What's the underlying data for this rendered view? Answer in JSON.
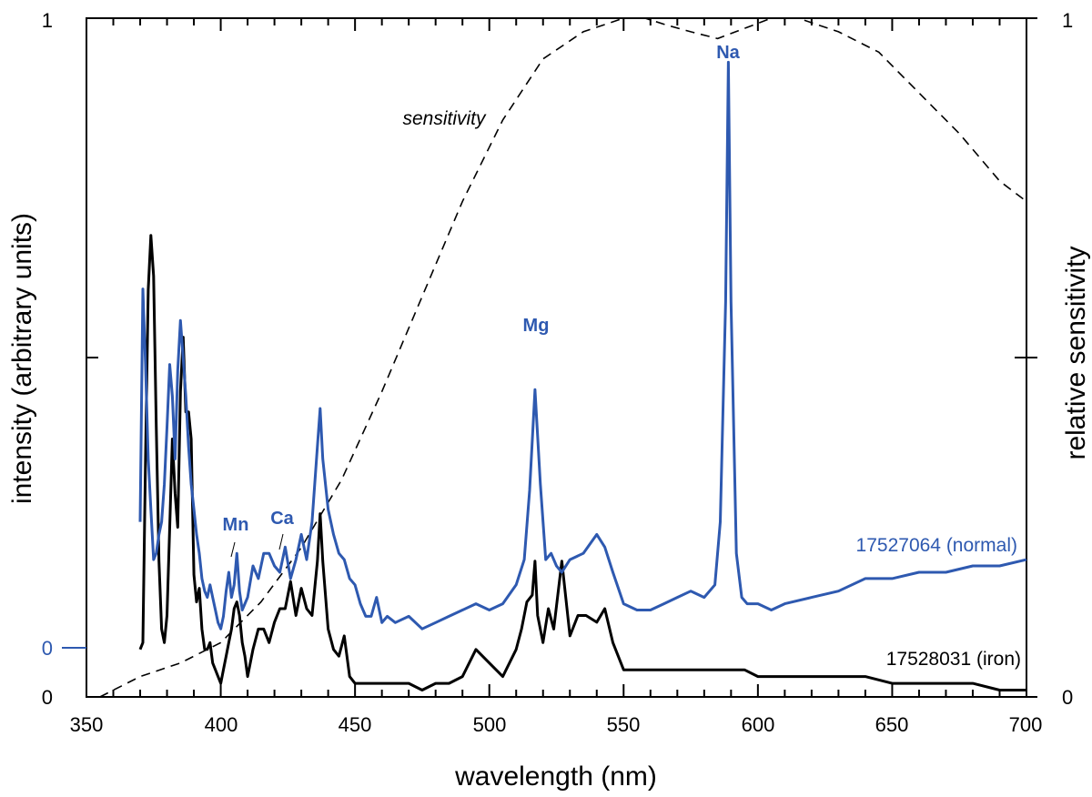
{
  "chart_data": {
    "type": "line",
    "xlabel": "wavelength (nm)",
    "ylabel_left": "intensity (arbitrary units)",
    "ylabel_right": "relative sensitivity",
    "xlim": [
      350,
      700
    ],
    "x_ticks": [
      "350",
      "400",
      "450",
      "500",
      "550",
      "600",
      "650",
      "700"
    ],
    "left_tick_labels": {
      "top": "1",
      "bottom": "0",
      "blue_zero": "0"
    },
    "right_tick_labels": {
      "top": "1",
      "bottom": "0"
    },
    "series": [
      {
        "name": "17527064 (normal)",
        "color": "#2e59b0",
        "label": "17527064 (normal)",
        "x": [
          370,
          371,
          372,
          373,
          374,
          375,
          376,
          377,
          378,
          379,
          380,
          381,
          382,
          383,
          384,
          385,
          386,
          387,
          388,
          389,
          390,
          391,
          392,
          393,
          394,
          395,
          396,
          397,
          398,
          399,
          400,
          401,
          402,
          403,
          404,
          405,
          406,
          407,
          408,
          410,
          412,
          414,
          416,
          418,
          420,
          422,
          424,
          426,
          428,
          430,
          432,
          434,
          436,
          437,
          438,
          440,
          442,
          444,
          446,
          448,
          450,
          452,
          454,
          456,
          458,
          460,
          462,
          465,
          470,
          475,
          480,
          485,
          490,
          495,
          500,
          505,
          510,
          513,
          515,
          517,
          519,
          521,
          523,
          525,
          527,
          530,
          535,
          540,
          543,
          546,
          550,
          555,
          560,
          565,
          570,
          575,
          580,
          584,
          586,
          588,
          589,
          590,
          592,
          594,
          596,
          600,
          605,
          610,
          620,
          630,
          640,
          650,
          660,
          670,
          680,
          690,
          700
        ],
        "y": [
          0.2,
          0.57,
          0.45,
          0.3,
          0.22,
          0.14,
          0.15,
          0.18,
          0.2,
          0.26,
          0.35,
          0.45,
          0.4,
          0.3,
          0.44,
          0.52,
          0.46,
          0.4,
          0.32,
          0.26,
          0.22,
          0.18,
          0.15,
          0.11,
          0.09,
          0.08,
          0.1,
          0.08,
          0.06,
          0.04,
          0.03,
          0.05,
          0.09,
          0.12,
          0.08,
          0.1,
          0.15,
          0.09,
          0.06,
          0.08,
          0.13,
          0.11,
          0.15,
          0.15,
          0.13,
          0.12,
          0.16,
          0.11,
          0.14,
          0.18,
          0.14,
          0.2,
          0.32,
          0.38,
          0.3,
          0.22,
          0.18,
          0.15,
          0.14,
          0.11,
          0.1,
          0.07,
          0.05,
          0.05,
          0.08,
          0.04,
          0.05,
          0.04,
          0.05,
          0.03,
          0.04,
          0.05,
          0.06,
          0.07,
          0.06,
          0.07,
          0.1,
          0.14,
          0.25,
          0.41,
          0.26,
          0.14,
          0.15,
          0.13,
          0.12,
          0.14,
          0.15,
          0.18,
          0.16,
          0.12,
          0.07,
          0.06,
          0.06,
          0.07,
          0.08,
          0.09,
          0.08,
          0.1,
          0.2,
          0.55,
          0.93,
          0.55,
          0.15,
          0.08,
          0.07,
          0.07,
          0.06,
          0.07,
          0.08,
          0.09,
          0.11,
          0.11,
          0.12,
          0.12,
          0.13,
          0.13,
          0.14
        ]
      },
      {
        "name": "17528031 (iron)",
        "color": "#000000",
        "label": "17528031 (iron)",
        "x": [
          370,
          371,
          372,
          373,
          374,
          375,
          376,
          377,
          378,
          379,
          380,
          381,
          382,
          383,
          384,
          385,
          386,
          387,
          388,
          389,
          390,
          391,
          392,
          393,
          394,
          395,
          396,
          397,
          398,
          399,
          400,
          401,
          402,
          403,
          404,
          405,
          406,
          407,
          408,
          409,
          410,
          412,
          414,
          416,
          418,
          420,
          422,
          424,
          426,
          428,
          430,
          432,
          434,
          436,
          437,
          438,
          440,
          442,
          444,
          446,
          448,
          450,
          452,
          455,
          460,
          465,
          470,
          475,
          480,
          485,
          490,
          495,
          500,
          505,
          510,
          512,
          514,
          516,
          517,
          518,
          520,
          522,
          524,
          527,
          530,
          533,
          536,
          540,
          543,
          546,
          550,
          560,
          570,
          580,
          590,
          595,
          600,
          610,
          620,
          630,
          640,
          650,
          660,
          670,
          680,
          690,
          700
        ],
        "y": [
          0.07,
          0.08,
          0.35,
          0.6,
          0.68,
          0.62,
          0.4,
          0.2,
          0.1,
          0.08,
          0.12,
          0.25,
          0.38,
          0.3,
          0.25,
          0.45,
          0.53,
          0.42,
          0.42,
          0.38,
          0.18,
          0.14,
          0.16,
          0.1,
          0.07,
          0.07,
          0.08,
          0.05,
          0.04,
          0.03,
          0.02,
          0.04,
          0.06,
          0.08,
          0.1,
          0.13,
          0.14,
          0.12,
          0.08,
          0.06,
          0.03,
          0.07,
          0.1,
          0.1,
          0.08,
          0.11,
          0.13,
          0.13,
          0.17,
          0.12,
          0.16,
          0.13,
          0.12,
          0.2,
          0.27,
          0.2,
          0.1,
          0.07,
          0.06,
          0.09,
          0.03,
          0.02,
          0.02,
          0.02,
          0.02,
          0.02,
          0.02,
          0.01,
          0.02,
          0.02,
          0.03,
          0.07,
          0.05,
          0.03,
          0.07,
          0.1,
          0.14,
          0.15,
          0.2,
          0.12,
          0.08,
          0.13,
          0.1,
          0.2,
          0.09,
          0.12,
          0.12,
          0.11,
          0.13,
          0.08,
          0.04,
          0.04,
          0.04,
          0.04,
          0.04,
          0.04,
          0.03,
          0.03,
          0.03,
          0.03,
          0.03,
          0.02,
          0.02,
          0.02,
          0.02,
          0.01,
          0.01
        ]
      },
      {
        "name": "sensitivity",
        "color": "#000000",
        "style": "dashed",
        "label": "sensitivity",
        "x": [
          355,
          370,
          385,
          400,
          415,
          430,
          445,
          460,
          475,
          490,
          505,
          520,
          535,
          550,
          558,
          566,
          575,
          585,
          595,
          605,
          615,
          630,
          645,
          660,
          675,
          690,
          700
        ],
        "y": [
          0.0,
          0.03,
          0.05,
          0.08,
          0.14,
          0.22,
          0.32,
          0.45,
          0.59,
          0.73,
          0.85,
          0.94,
          0.98,
          1.0,
          1.0,
          0.99,
          0.98,
          0.97,
          0.985,
          1.0,
          1.0,
          0.98,
          0.95,
          0.89,
          0.83,
          0.76,
          0.73
        ]
      }
    ],
    "annotations": [
      {
        "text": "Na",
        "x": 589,
        "y": 0.93
      },
      {
        "text": "Mg",
        "x": 517,
        "y": 0.41
      },
      {
        "text": "Mn",
        "x": 403,
        "y": 0.16
      },
      {
        "text": "Ca",
        "x": 422,
        "y": 0.17
      }
    ]
  }
}
